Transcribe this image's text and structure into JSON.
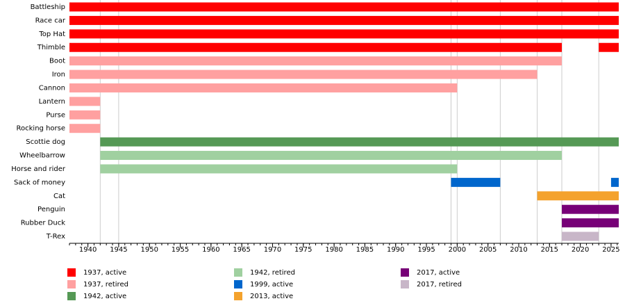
{
  "chart_data": {
    "type": "timeline",
    "series": [
      {
        "name": "1937, active",
        "color": "#ff0000"
      },
      {
        "name": "1937, retired",
        "color": "#ffa0a0"
      },
      {
        "name": "1942, active",
        "color": "#559955"
      },
      {
        "name": "1942, retired",
        "color": "#a0d0a0"
      },
      {
        "name": "1999, active",
        "color": "#0066cc"
      },
      {
        "name": "2013, active",
        "color": "#f4a22d"
      },
      {
        "name": "2017, active",
        "color": "#770077"
      },
      {
        "name": "2017, retired",
        "color": "#c8b6c8"
      }
    ],
    "rows": [
      {
        "label": "Battleship",
        "segments": [
          {
            "start": 1937,
            "end": 2026.25,
            "series": 0
          }
        ]
      },
      {
        "label": "Race car",
        "segments": [
          {
            "start": 1937,
            "end": 2026.25,
            "series": 0
          }
        ]
      },
      {
        "label": "Top Hat",
        "segments": [
          {
            "start": 1937,
            "end": 2026.25,
            "series": 0
          }
        ]
      },
      {
        "label": "Thimble",
        "segments": [
          {
            "start": 1937,
            "end": 2017,
            "series": 0
          },
          {
            "start": 2023,
            "end": 2026.25,
            "series": 0
          }
        ]
      },
      {
        "label": "Boot",
        "segments": [
          {
            "start": 1937,
            "end": 2017,
            "series": 1
          }
        ]
      },
      {
        "label": "Iron",
        "segments": [
          {
            "start": 1937,
            "end": 2013,
            "series": 1
          }
        ]
      },
      {
        "label": "Cannon",
        "segments": [
          {
            "start": 1937,
            "end": 2000,
            "series": 1
          }
        ]
      },
      {
        "label": "Lantern",
        "segments": [
          {
            "start": 1937,
            "end": 1942,
            "series": 1
          }
        ]
      },
      {
        "label": "Purse",
        "segments": [
          {
            "start": 1937,
            "end": 1942,
            "series": 1
          }
        ]
      },
      {
        "label": "Rocking horse",
        "segments": [
          {
            "start": 1937,
            "end": 1942,
            "series": 1
          }
        ]
      },
      {
        "label": "Scottie dog",
        "segments": [
          {
            "start": 1942,
            "end": 2026.25,
            "series": 2
          }
        ]
      },
      {
        "label": "Wheelbarrow",
        "segments": [
          {
            "start": 1942,
            "end": 2017,
            "series": 3
          }
        ]
      },
      {
        "label": "Horse and rider",
        "segments": [
          {
            "start": 1942,
            "end": 2000,
            "series": 3
          }
        ]
      },
      {
        "label": "Sack of money",
        "segments": [
          {
            "start": 1999,
            "end": 2007,
            "series": 4
          },
          {
            "start": 2025,
            "end": 2026.25,
            "series": 4
          }
        ]
      },
      {
        "label": "Cat",
        "segments": [
          {
            "start": 2013,
            "end": 2026.25,
            "series": 5
          }
        ]
      },
      {
        "label": "Penguin",
        "segments": [
          {
            "start": 2017,
            "end": 2026.25,
            "series": 6
          }
        ]
      },
      {
        "label": "Rubber Duck",
        "segments": [
          {
            "start": 2017,
            "end": 2026.25,
            "series": 6
          }
        ]
      },
      {
        "label": "T-Rex",
        "segments": [
          {
            "start": 2017,
            "end": 2023,
            "series": 7
          }
        ]
      }
    ],
    "xlim": [
      1937,
      2026.25
    ],
    "xticks": [
      1940,
      1945,
      1950,
      1955,
      1960,
      1965,
      1970,
      1975,
      1980,
      1985,
      1990,
      1995,
      2000,
      2005,
      2010,
      2015,
      2020,
      2025
    ],
    "xminor_step": 1,
    "markers": [
      1942,
      1945,
      1999,
      2000,
      2007,
      2013,
      2017,
      2023
    ]
  }
}
